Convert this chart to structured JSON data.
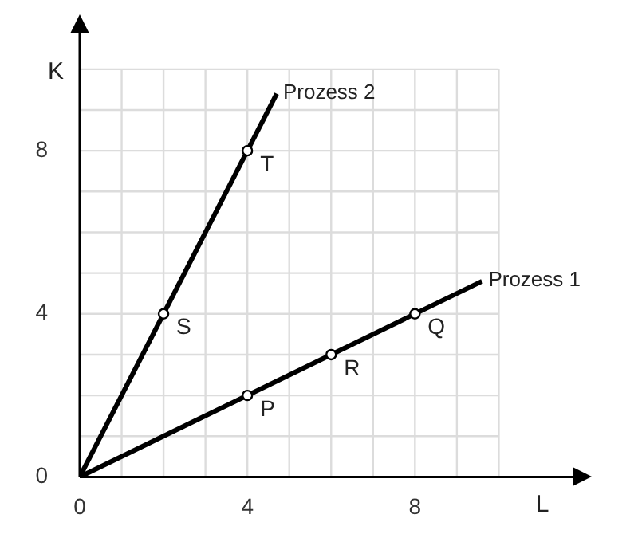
{
  "chart_data": {
    "type": "line",
    "xlabel": "L",
    "ylabel": "K",
    "xlim": [
      0,
      11.8
    ],
    "ylim": [
      0,
      10.9
    ],
    "xticks": [
      0,
      {
        "value": 1,
        "label": null
      },
      {
        "value": 2,
        "label": null
      },
      {
        "value": 3,
        "label": null
      },
      4,
      {
        "value": 5,
        "label": null
      },
      {
        "value": 6,
        "label": null
      },
      {
        "value": 7,
        "label": null
      },
      8,
      {
        "value": 9,
        "label": null
      },
      {
        "value": 10,
        "label": null
      }
    ],
    "yticks": [
      0,
      {
        "value": 1,
        "label": null
      },
      {
        "value": 2,
        "label": null
      },
      {
        "value": 3,
        "label": null
      },
      4,
      {
        "value": 5,
        "label": null
      },
      {
        "value": 6,
        "label": null
      },
      {
        "value": 7,
        "label": null
      },
      8,
      {
        "value": 9,
        "label": null
      },
      {
        "value": 10,
        "label": null
      }
    ],
    "grid": true,
    "legend": false,
    "series": [
      {
        "name": "Prozess 1",
        "color": "#000000",
        "x": [
          0,
          9.6
        ],
        "values": [
          0,
          4.8
        ],
        "marker": "none"
      },
      {
        "name": "Prozess 2",
        "color": "#000000",
        "x": [
          0,
          4.7
        ],
        "values": [
          0,
          9.4
        ],
        "marker": "none"
      },
      {
        "type": "scatter",
        "color": "#000000",
        "x": [
          4,
          6,
          8,
          2,
          4
        ],
        "values": [
          2,
          3,
          4,
          4,
          8
        ],
        "marker": "circle"
      }
    ],
    "annotations": [
      {
        "text": "P",
        "x": 4,
        "y": 2
      },
      {
        "text": "R",
        "x": 6,
        "y": 3
      },
      {
        "text": "Q",
        "x": 8,
        "y": 4
      },
      {
        "text": "S",
        "x": 2,
        "y": 4
      },
      {
        "text": "T",
        "x": 4,
        "y": 8
      }
    ]
  }
}
